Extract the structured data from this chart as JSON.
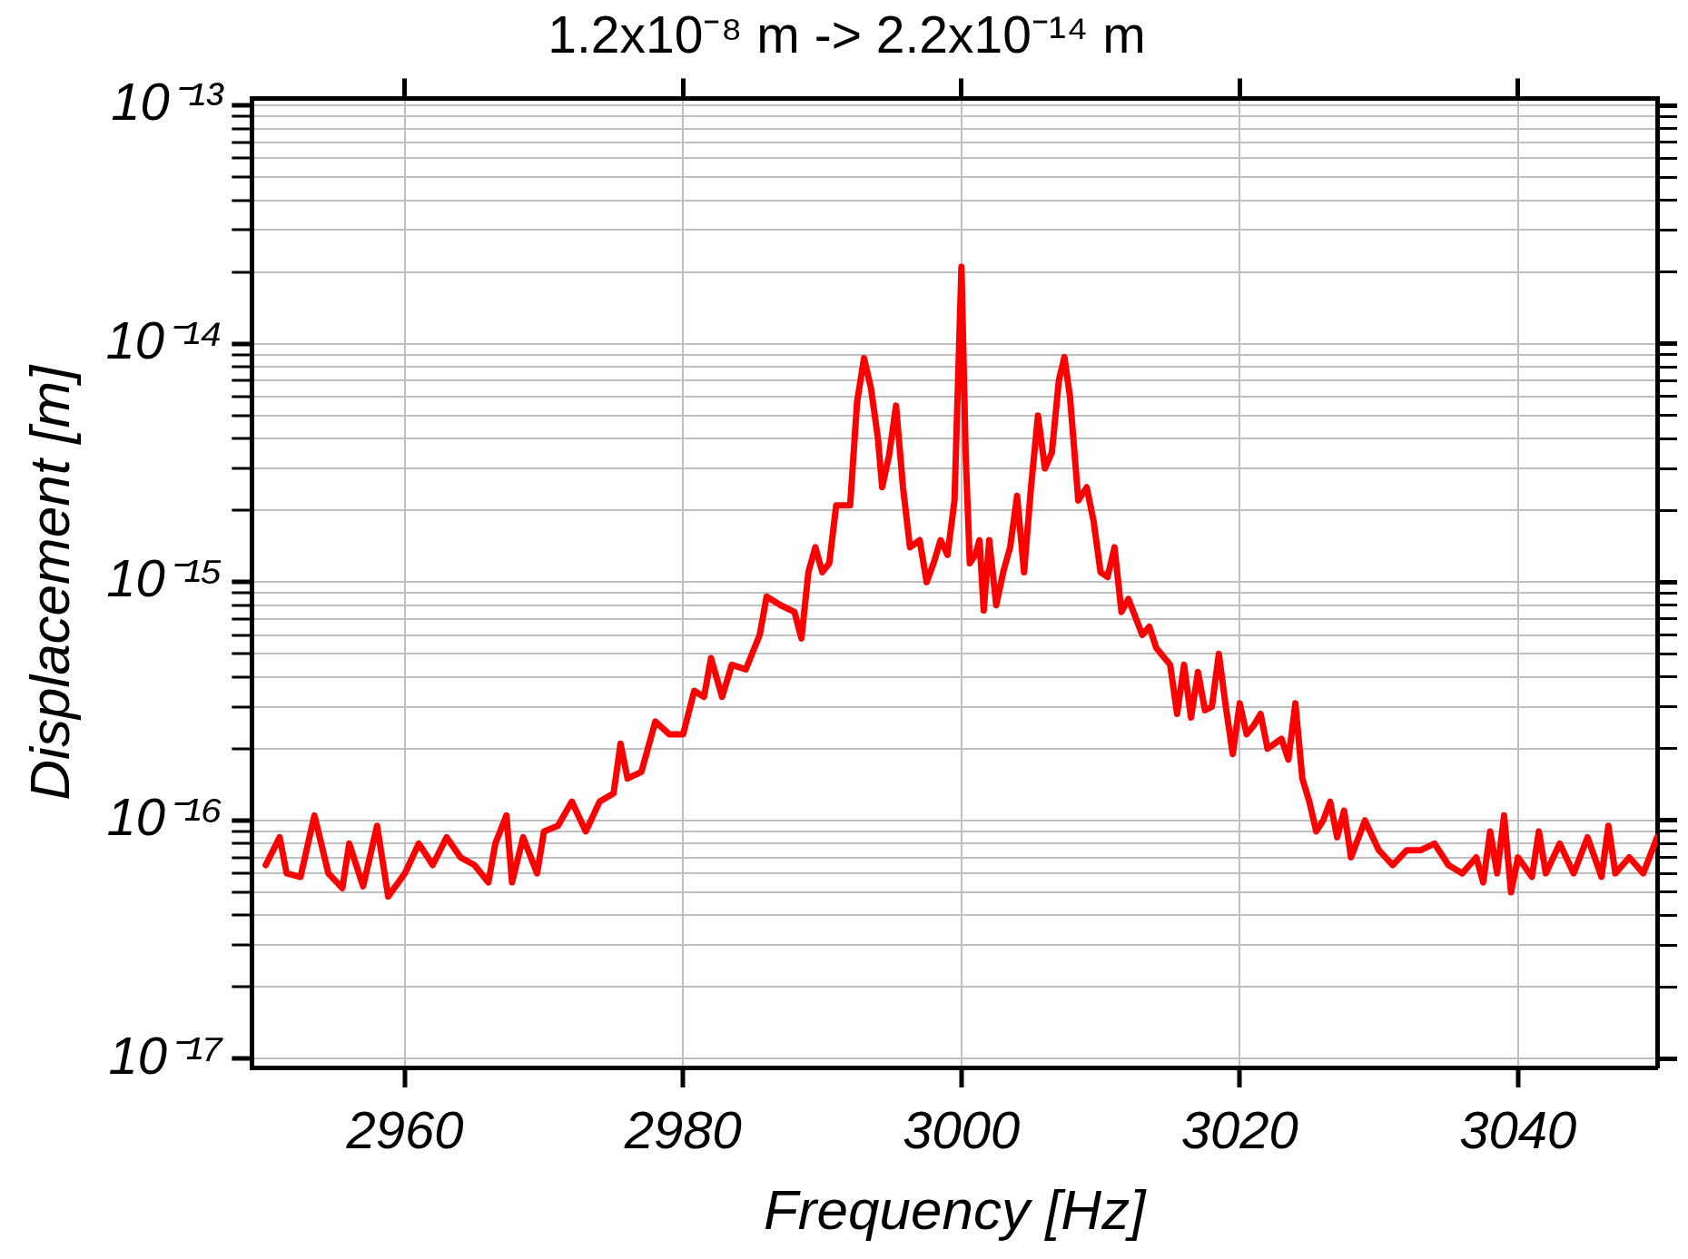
{
  "chart_data": {
    "type": "line",
    "title": "1.2x10⁻⁸ m -> 2.2x10⁻¹⁴ m",
    "xlabel": "Frequency [Hz]",
    "ylabel": "Displacement [m]",
    "log": "y",
    "grid": true,
    "legend": false,
    "marker": "none",
    "line_style": "solid",
    "xlim": [
      2949,
      3050
    ],
    "xticks": [
      2960,
      2980,
      3000,
      3020,
      3040
    ],
    "ylim": [
      9.2e-18,
      1.07e-13
    ],
    "yticks": [
      {
        "value": 1e-17,
        "label": "10⁻¹⁷"
      },
      {
        "value": 2e-17,
        "label": null
      },
      {
        "value": 3e-17,
        "label": null
      },
      {
        "value": 4e-17,
        "label": null
      },
      {
        "value": 5e-17,
        "label": null
      },
      {
        "value": 6e-17,
        "label": null
      },
      {
        "value": 7e-17,
        "label": null
      },
      {
        "value": 8e-17,
        "label": null
      },
      {
        "value": 9e-17,
        "label": null
      },
      {
        "value": 1e-16,
        "label": "10⁻¹⁶"
      },
      {
        "value": 2e-16,
        "label": null
      },
      {
        "value": 3e-16,
        "label": null
      },
      {
        "value": 4e-16,
        "label": null
      },
      {
        "value": 5e-16,
        "label": null
      },
      {
        "value": 6e-16,
        "label": null
      },
      {
        "value": 7e-16,
        "label": null
      },
      {
        "value": 8e-16,
        "label": null
      },
      {
        "value": 9e-16,
        "label": null
      },
      {
        "value": 1e-15,
        "label": "10⁻¹⁵"
      },
      {
        "value": 2e-15,
        "label": null
      },
      {
        "value": 3e-15,
        "label": null
      },
      {
        "value": 4e-15,
        "label": null
      },
      {
        "value": 5e-15,
        "label": null
      },
      {
        "value": 6e-15,
        "label": null
      },
      {
        "value": 7e-15,
        "label": null
      },
      {
        "value": 8e-15,
        "label": null
      },
      {
        "value": 9e-15,
        "label": null
      },
      {
        "value": 1e-14,
        "label": "10⁻¹⁴"
      },
      {
        "value": 2e-14,
        "label": null
      },
      {
        "value": 3e-14,
        "label": null
      },
      {
        "value": 4e-14,
        "label": null
      },
      {
        "value": 5e-14,
        "label": null
      },
      {
        "value": 6e-14,
        "label": null
      },
      {
        "value": 7e-14,
        "label": null
      },
      {
        "value": 8e-14,
        "label": null
      },
      {
        "value": 9e-14,
        "label": null
      },
      {
        "value": 1e-13,
        "label": "10⁻¹³"
      }
    ],
    "series": [
      {
        "color": "#ff0000",
        "x": [
          2950,
          2951,
          2951.5,
          2952.5,
          2953.5,
          2954.5,
          2955.5,
          2956,
          2957,
          2958,
          2958.8,
          2960,
          2961,
          2962,
          2963,
          2964,
          2965,
          2966,
          2966.5,
          2967.3,
          2967.7,
          2968.5,
          2969.5,
          2970,
          2971,
          2972,
          2973,
          2974,
          2975,
          2975.5,
          2976,
          2977,
          2978,
          2979,
          2980,
          2980.8,
          2981.5,
          2982,
          2982.8,
          2983.5,
          2984.5,
          2985.5,
          2986,
          2987,
          2988,
          2988.5,
          2989,
          2989.5,
          2990,
          2990.5,
          2991,
          2992,
          2992.5,
          2993,
          2993.5,
          2994,
          2994.3,
          2994.8,
          2995.3,
          2995.8,
          2996.3,
          2997,
          2997.5,
          2998,
          2998.5,
          2999,
          2999.5,
          3000,
          3000.3,
          3000.6,
          3001,
          3001.3,
          3001.6,
          3002,
          3002.5,
          3003,
          3003.5,
          3004,
          3004.5,
          3005,
          3005.5,
          3006,
          3006.5,
          3007,
          3007.4,
          3007.8,
          3008.4,
          3009,
          3009.5,
          3010,
          3010.5,
          3011,
          3011.5,
          3012,
          3013,
          3013.5,
          3014,
          3015,
          3015.5,
          3016,
          3016.5,
          3017,
          3017.5,
          3018,
          3018.5,
          3019,
          3019.5,
          3020,
          3020.5,
          3021,
          3021.5,
          3022,
          3023,
          3023.5,
          3024,
          3024.5,
          3025,
          3025.5,
          3026,
          3026.5,
          3027,
          3027.5,
          3028,
          3029,
          3030,
          3031,
          3032,
          3033,
          3034,
          3035,
          3036,
          3037,
          3037.5,
          3038,
          3038.5,
          3039,
          3039.5,
          3040,
          3041,
          3041.5,
          3042,
          3043,
          3044,
          3045,
          3046,
          3046.5,
          3047,
          3048,
          3049,
          3050
        ],
        "values": [
          6.5e-17,
          8.5e-17,
          6e-17,
          5.8e-17,
          1.05e-16,
          6e-17,
          5.2e-17,
          8e-17,
          5.3e-17,
          9.5e-17,
          4.8e-17,
          6e-17,
          8e-17,
          6.5e-17,
          8.5e-17,
          7e-17,
          6.5e-17,
          5.5e-17,
          8e-17,
          1.05e-16,
          5.5e-17,
          8.5e-17,
          6e-17,
          9e-17,
          9.5e-17,
          1.2e-16,
          9e-17,
          1.2e-16,
          1.3e-16,
          2.1e-16,
          1.5e-16,
          1.6e-16,
          2.6e-16,
          2.3e-16,
          2.3e-16,
          3.5e-16,
          3.3e-16,
          4.8e-16,
          3.3e-16,
          4.5e-16,
          4.3e-16,
          6e-16,
          8.7e-16,
          8e-16,
          7.5e-16,
          5.8e-16,
          1.1e-15,
          1.4e-15,
          1.1e-15,
          1.2e-15,
          2.1e-15,
          2.1e-15,
          5.7e-15,
          8.7e-15,
          6.5e-15,
          4e-15,
          2.5e-15,
          3.4e-15,
          5.5e-15,
          2.5e-15,
          1.4e-15,
          1.5e-15,
          1e-15,
          1.2e-15,
          1.5e-15,
          1.3e-15,
          2.2e-15,
          2.1e-14,
          3.5e-15,
          1.2e-15,
          1.3e-15,
          1.5e-15,
          7.6e-16,
          1.5e-15,
          8e-16,
          1.1e-15,
          1.4e-15,
          2.3e-15,
          1.1e-15,
          2.5e-15,
          5e-15,
          3e-15,
          3.5e-15,
          7e-15,
          8.8e-15,
          6e-15,
          2.2e-15,
          2.5e-15,
          1.8e-15,
          1.1e-15,
          1.05e-15,
          1.4e-15,
          7.5e-16,
          8.5e-16,
          6e-16,
          6.5e-16,
          5.3e-16,
          4.5e-16,
          2.8e-16,
          4.5e-16,
          2.7e-16,
          4.2e-16,
          2.9e-16,
          3e-16,
          5e-16,
          3e-16,
          1.9e-16,
          3.1e-16,
          2.3e-16,
          2.5e-16,
          2.8e-16,
          2e-16,
          2.2e-16,
          1.8e-16,
          3.1e-16,
          1.5e-16,
          1.2e-16,
          9e-17,
          1e-16,
          1.2e-16,
          8.5e-17,
          1.1e-16,
          7e-17,
          1e-16,
          7.5e-17,
          6.5e-17,
          7.5e-17,
          7.5e-17,
          8e-17,
          6.5e-17,
          6e-17,
          7e-17,
          5.5e-17,
          9e-17,
          6e-17,
          1.05e-16,
          5e-17,
          7e-17,
          5.8e-17,
          9e-17,
          6e-17,
          8e-17,
          6e-17,
          8.5e-17,
          5.8e-17,
          9.5e-17,
          6e-17,
          7e-17,
          6e-17,
          8.5e-17
        ]
      }
    ]
  }
}
